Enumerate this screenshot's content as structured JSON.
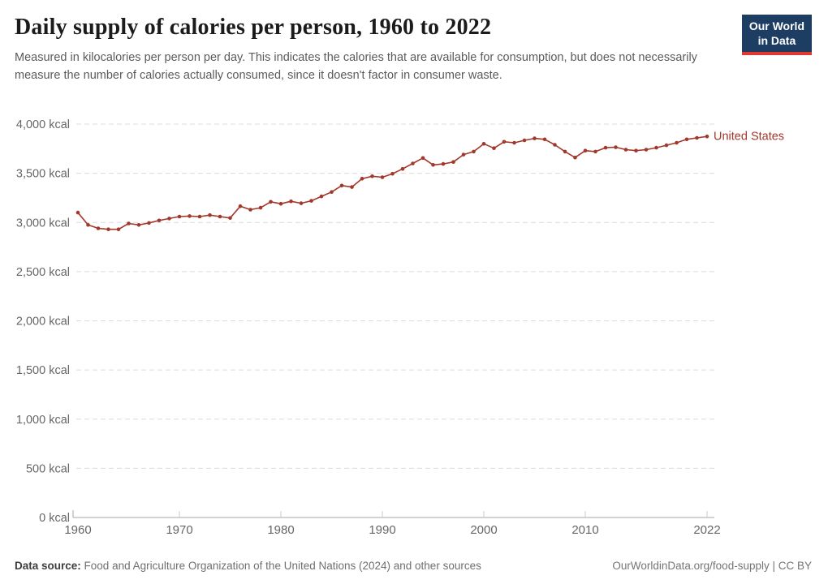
{
  "header": {
    "title": "Daily supply of calories per person, 1960 to 2022",
    "subtitle": "Measured in kilocalories per person per day. This indicates the calories that are available for consumption, but does not necessarily measure the number of calories actually consumed, since it doesn't factor in consumer waste."
  },
  "logo": {
    "line1": "Our World",
    "line2": "in Data",
    "bg_color": "#1d3d63",
    "accent_color": "#e0392f"
  },
  "chart_data": {
    "type": "line",
    "title": "Daily supply of calories per person, 1960 to 2022",
    "xlabel": "",
    "ylabel": "kcal",
    "xlim": [
      1958,
      2023
    ],
    "ylim": [
      0,
      4000
    ],
    "grid": "dashed-horizontal",
    "legend_position": "line-end-label",
    "xticks": [
      1960,
      1970,
      1980,
      1990,
      2000,
      2010,
      2022
    ],
    "yticks": [
      0,
      500,
      1000,
      1500,
      2000,
      2500,
      3000,
      3500,
      4000
    ],
    "ytick_labels": [
      "0 kcal",
      "500 kcal",
      "1,000 kcal",
      "1,500 kcal",
      "2,000 kcal",
      "2,500 kcal",
      "3,000 kcal",
      "3,500 kcal",
      "4,000 kcal"
    ],
    "x": [
      1960,
      1961,
      1962,
      1963,
      1964,
      1965,
      1966,
      1967,
      1968,
      1969,
      1970,
      1971,
      1972,
      1973,
      1974,
      1975,
      1976,
      1977,
      1978,
      1979,
      1980,
      1981,
      1982,
      1983,
      1984,
      1985,
      1986,
      1987,
      1988,
      1989,
      1990,
      1991,
      1992,
      1993,
      1994,
      1995,
      1996,
      1997,
      1998,
      1999,
      2000,
      2001,
      2002,
      2003,
      2004,
      2005,
      2006,
      2007,
      2008,
      2009,
      2010,
      2011,
      2012,
      2013,
      2014,
      2015,
      2016,
      2017,
      2018,
      2019,
      2020,
      2021,
      2022
    ],
    "series": [
      {
        "name": "United States",
        "color": "#A2382C",
        "values": [
          3100,
          2975,
          2940,
          2930,
          2930,
          2990,
          2975,
          2995,
          3020,
          3040,
          3060,
          3065,
          3060,
          3075,
          3060,
          3045,
          3165,
          3130,
          3150,
          3210,
          3190,
          3215,
          3195,
          3220,
          3265,
          3310,
          3375,
          3360,
          3445,
          3470,
          3460,
          3495,
          3545,
          3600,
          3655,
          3585,
          3595,
          3615,
          3690,
          3720,
          3800,
          3755,
          3820,
          3810,
          3835,
          3855,
          3845,
          3790,
          3720,
          3660,
          3730,
          3720,
          3760,
          3765,
          3740,
          3730,
          3740,
          3760,
          3785,
          3810,
          3845,
          3860,
          3875
        ]
      }
    ],
    "colors": {
      "gridline": "#dcdcdc",
      "axis": "#a5a5a5",
      "tick_text": "#666666"
    }
  },
  "footer": {
    "source_label": "Data source:",
    "source_text": "Food and Agriculture Organization of the United Nations (2024) and other sources",
    "link_text": "OurWorldinData.org/food-supply | CC BY"
  }
}
